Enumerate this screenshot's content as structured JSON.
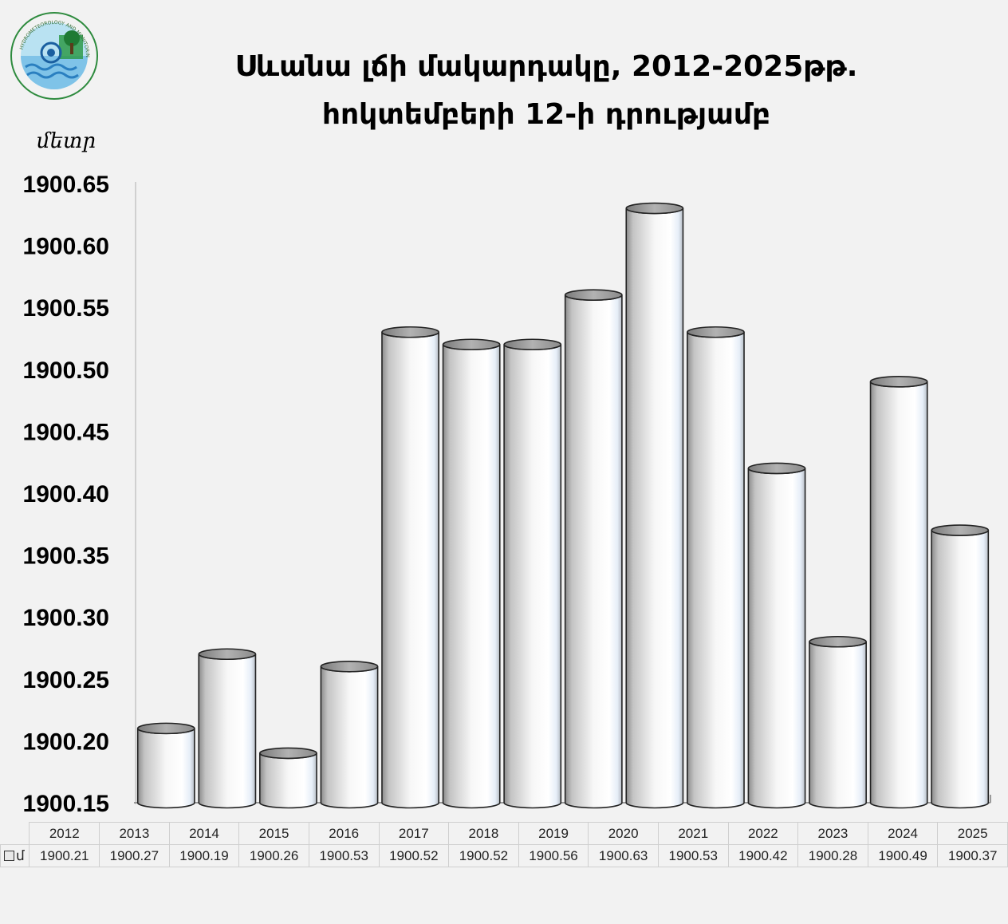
{
  "header": {
    "title_line1": "Սևանա լճի մակարդակը, 2012-2025թթ.",
    "title_line2": "հոկտեմբերի 12-ի դրությամբ",
    "unit_label": "մետր"
  },
  "logo": {
    "icon": "hydrometeorology-center-logo",
    "arc_text": "HYDROMETEOROLOGY AND MONITORING CENTER"
  },
  "chart_data": {
    "type": "bar",
    "style": "3d-cylinder",
    "categories": [
      "2012",
      "2013",
      "2014",
      "2015",
      "2016",
      "2017",
      "2018",
      "2019",
      "2020",
      "2021",
      "2022",
      "2023",
      "2024",
      "2025"
    ],
    "values": [
      1900.21,
      1900.27,
      1900.19,
      1900.26,
      1900.53,
      1900.52,
      1900.52,
      1900.56,
      1900.63,
      1900.53,
      1900.42,
      1900.28,
      1900.49,
      1900.37
    ],
    "series": [
      {
        "name": "մ",
        "values": [
          1900.21,
          1900.27,
          1900.19,
          1900.26,
          1900.53,
          1900.52,
          1900.52,
          1900.56,
          1900.63,
          1900.53,
          1900.42,
          1900.28,
          1900.49,
          1900.37
        ]
      }
    ],
    "yticks": [
      "1900.65",
      "1900.60",
      "1900.55",
      "1900.50",
      "1900.45",
      "1900.40",
      "1900.35",
      "1900.30",
      "1900.25",
      "1900.20",
      "1900.15"
    ],
    "ylim": [
      1900.15,
      1900.65
    ],
    "ylabel": "մետր",
    "grid": false,
    "legend": "data-table",
    "colors": {
      "bar_body": "#d4d4d4",
      "bar_top": "#aaaaaa",
      "outline": "#222222",
      "background": "#f2f2f2"
    }
  },
  "table": {
    "legend_label": "մ",
    "years": [
      "2012",
      "2013",
      "2014",
      "2015",
      "2016",
      "2017",
      "2018",
      "2019",
      "2020",
      "2021",
      "2022",
      "2023",
      "2024",
      "2025"
    ],
    "values": [
      "1900.21",
      "1900.27",
      "1900.19",
      "1900.26",
      "1900.53",
      "1900.52",
      "1900.52",
      "1900.56",
      "1900.63",
      "1900.53",
      "1900.42",
      "1900.28",
      "1900.49",
      "1900.37"
    ]
  }
}
